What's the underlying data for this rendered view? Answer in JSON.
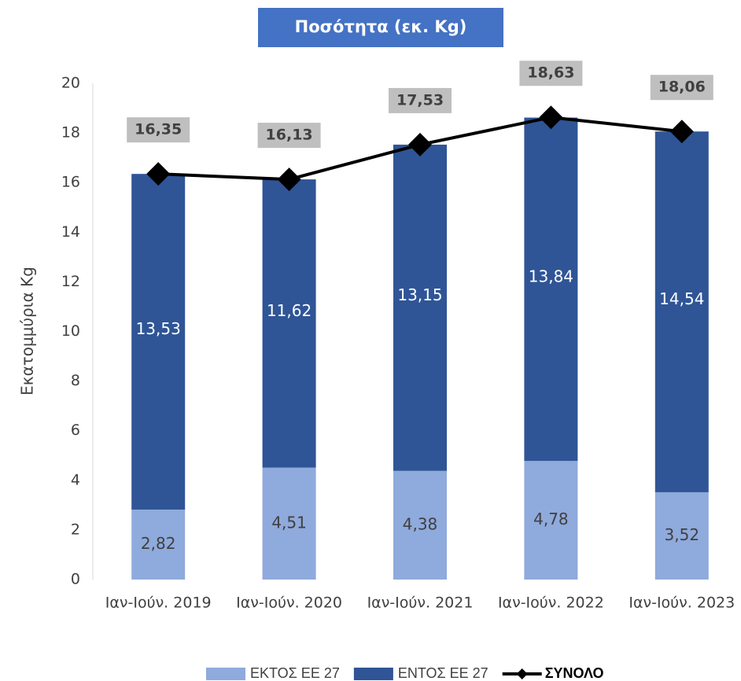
{
  "chart_data": {
    "type": "bar",
    "title": "Ποσότητα  (εκ. Kg)",
    "y_label": "Εκατομμύρια Kg",
    "categories": [
      "Ιαν-Ιούν. 2019",
      "Ιαν-Ιούν. 2020",
      "Ιαν-Ιούν. 2021",
      "Ιαν-Ιούν. 2022",
      "Ιαν-Ιούν. 2023"
    ],
    "stacked": true,
    "series": [
      {
        "name": "ΕΚΤΟΣ ΕΕ 27",
        "color": "#8faadc",
        "type": "bar",
        "values": [
          2.82,
          4.51,
          4.38,
          4.78,
          3.52
        ],
        "value_labels": [
          "2,82",
          "4,51",
          "4,38",
          "4,78",
          "3,52"
        ]
      },
      {
        "name": "ΕΝΤΟΣ ΕΕ 27",
        "color": "#2f5597",
        "type": "bar",
        "values": [
          13.53,
          11.62,
          13.15,
          13.84,
          14.54
        ],
        "value_labels": [
          "13,53",
          "11,62",
          "13,15",
          "13,84",
          "14,54"
        ]
      },
      {
        "name": "ΣΥΝΟΛΟ",
        "color": "#000000",
        "type": "line",
        "values": [
          16.35,
          16.13,
          17.53,
          18.63,
          18.06
        ],
        "value_labels": [
          "16,35",
          "16,13",
          "17,53",
          "18,63",
          "18,06"
        ]
      }
    ],
    "ylim": [
      0,
      20
    ],
    "yticks": [
      0,
      2,
      4,
      6,
      8,
      10,
      12,
      14,
      16,
      18,
      20
    ],
    "grid": false,
    "legend": "bottom"
  }
}
